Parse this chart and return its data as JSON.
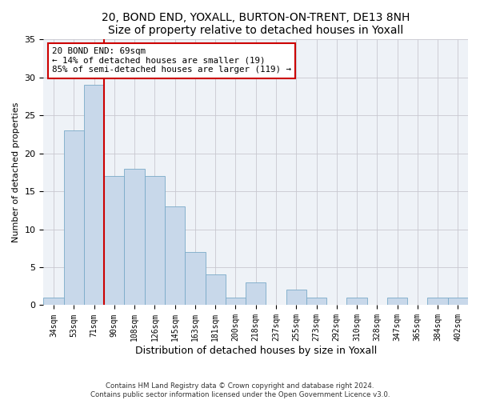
{
  "title1": "20, BOND END, YOXALL, BURTON-ON-TRENT, DE13 8NH",
  "title2": "Size of property relative to detached houses in Yoxall",
  "xlabel": "Distribution of detached houses by size in Yoxall",
  "ylabel": "Number of detached properties",
  "bar_color": "#c8d8ea",
  "bar_edge_color": "#7aaac8",
  "bar_values": [
    1,
    23,
    29,
    17,
    18,
    17,
    13,
    7,
    4,
    1,
    3,
    0,
    2,
    1,
    0,
    1,
    0,
    1,
    0,
    1,
    1
  ],
  "bin_labels": [
    "34sqm",
    "53sqm",
    "71sqm",
    "90sqm",
    "108sqm",
    "126sqm",
    "145sqm",
    "163sqm",
    "181sqm",
    "200sqm",
    "218sqm",
    "237sqm",
    "255sqm",
    "273sqm",
    "292sqm",
    "310sqm",
    "328sqm",
    "347sqm",
    "365sqm",
    "384sqm",
    "402sqm"
  ],
  "ylim": [
    0,
    35
  ],
  "yticks": [
    0,
    5,
    10,
    15,
    20,
    25,
    30,
    35
  ],
  "annotation_text": "20 BOND END: 69sqm\n← 14% of detached houses are smaller (19)\n85% of semi-detached houses are larger (119) →",
  "vline_bin_index": 2,
  "vline_color": "#cc0000",
  "annotation_box_color": "#ffffff",
  "annotation_box_edge": "#cc0000",
  "footer_text": "Contains HM Land Registry data © Crown copyright and database right 2024.\nContains public sector information licensed under the Open Government Licence v3.0.",
  "background_color": "#eef2f7",
  "grid_color": "#c8c8d0"
}
